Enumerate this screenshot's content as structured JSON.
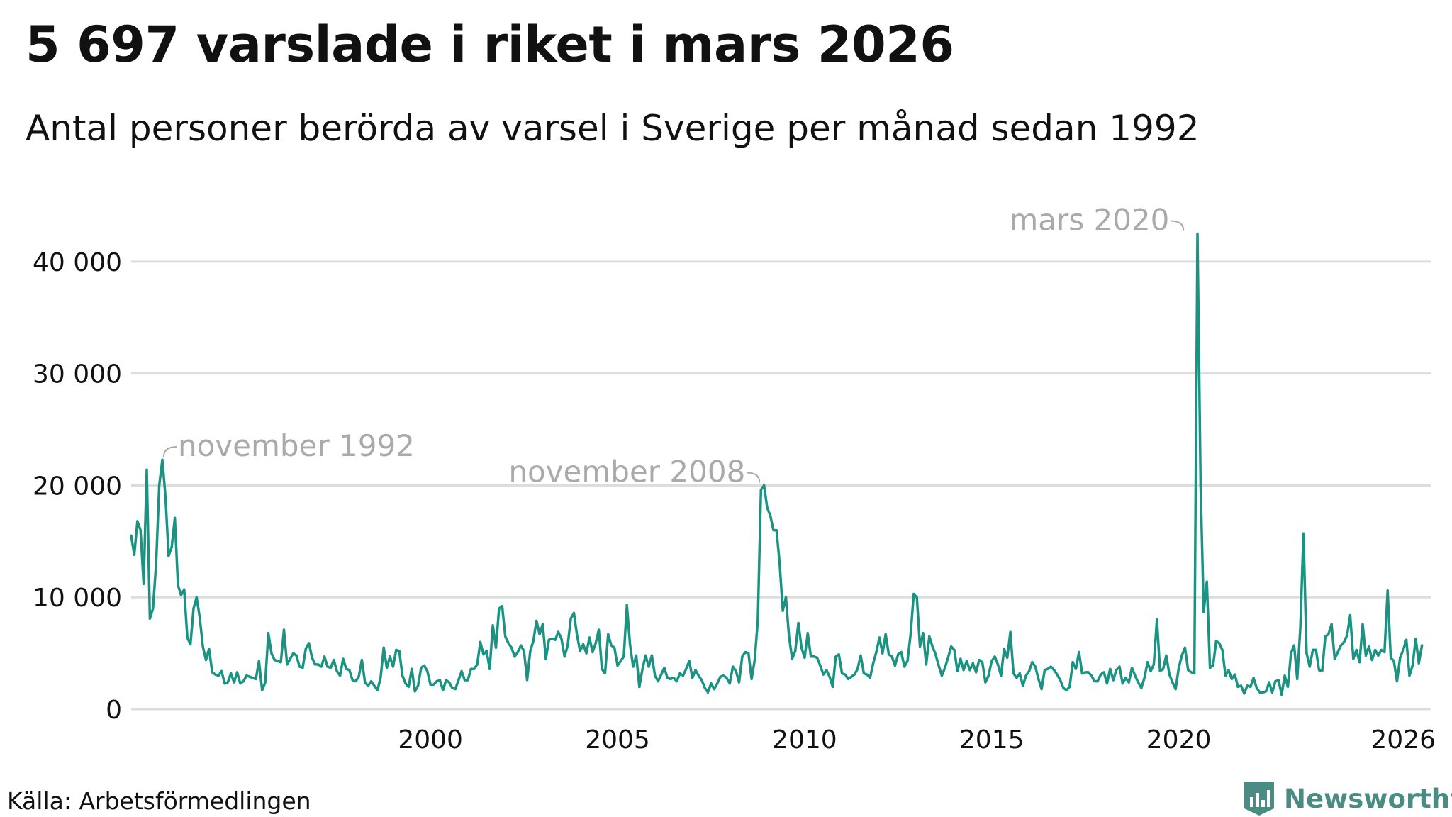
{
  "title": "5 697 varslade i riket i mars 2026",
  "subtitle": "Antal personer berörda av varsel i Sverige per månad sedan 1992",
  "source": "Källa: Arbetsförmedlingen",
  "brand": "Newsworthy",
  "colors": {
    "line": "#1a9383",
    "grid": "#dddddd",
    "annotation": "#aaaaaa",
    "text": "#111111",
    "brand": "#4a8c84"
  },
  "chart_data": {
    "type": "line",
    "title": "5 697 varslade i riket i mars 2026",
    "subtitle": "Antal personer berörda av varsel i Sverige per månad sedan 1992",
    "xlabel": "",
    "ylabel": "",
    "x_start": "1992-01",
    "x_end": "2026-03",
    "ylim": [
      0,
      45000
    ],
    "grid": true,
    "legend": "none",
    "y_ticks": [
      {
        "value": 0,
        "label": "0"
      },
      {
        "value": 10000,
        "label": "10 000"
      },
      {
        "value": 20000,
        "label": "20 000"
      },
      {
        "value": 30000,
        "label": "30 000"
      },
      {
        "value": 40000,
        "label": "40 000"
      }
    ],
    "x_ticks": [
      {
        "value": "2000-01",
        "label": "2000"
      },
      {
        "value": "2005-01",
        "label": "2005"
      },
      {
        "value": "2010-01",
        "label": "2010"
      },
      {
        "value": "2015-01",
        "label": "2015"
      },
      {
        "value": "2020-01",
        "label": "2020"
      },
      {
        "value": "2026-01",
        "label": "2026"
      }
    ],
    "annotations": [
      {
        "label": "november 1992",
        "x": "1992-11",
        "y": 22300,
        "side": "right"
      },
      {
        "label": "november 2008",
        "x": "2008-11",
        "y": 20000,
        "side": "left"
      },
      {
        "label": "mars 2020",
        "x": "2020-03",
        "y": 42500,
        "side": "left"
      }
    ],
    "series": [
      {
        "values": [
          15500,
          13800,
          16800,
          16000,
          11200,
          21400,
          8100,
          9000,
          13000,
          20000,
          22300,
          19000,
          13700,
          14500,
          17100,
          11100,
          10200,
          10700,
          6400,
          5800,
          9000,
          10000,
          8200,
          5600,
          4400,
          5400,
          3300,
          3100,
          3000,
          3400,
          2300,
          2400,
          3200,
          2400,
          3300,
          2300,
          2500,
          3000,
          2900,
          2800,
          2700,
          4300,
          1700,
          2400,
          6800,
          5000,
          4400,
          4300,
          4200,
          7100,
          4000,
          4500,
          5000,
          4800,
          3800,
          3700,
          5400,
          5900,
          4600,
          4000,
          4000,
          3800,
          4700,
          3800,
          3700,
          4400,
          3400,
          3000,
          4500,
          3600,
          3500,
          2600,
          2500,
          2900,
          4400,
          2400,
          2100,
          2500,
          2100,
          1700,
          2800,
          5500,
          3700,
          4700,
          3800,
          5300,
          5200,
          3000,
          2300,
          2000,
          3600,
          1600,
          2100,
          3700,
          3900,
          3400,
          2200,
          2200,
          2500,
          2600,
          1700,
          2600,
          2400,
          1900,
          1800,
          2600,
          3400,
          2600,
          2600,
          3600,
          3600,
          4000,
          6000,
          4900,
          5200,
          3600,
          7500,
          5500,
          9000,
          9200,
          6500,
          5900,
          5500,
          4700,
          5100,
          5700,
          5200,
          2600,
          5200,
          6100,
          7900,
          6700,
          7600,
          4500,
          6200,
          6300,
          6200,
          6900,
          6300,
          4700,
          5700,
          8100,
          8600,
          6600,
          5200,
          5800,
          5000,
          6400,
          5100,
          5900,
          7100,
          3600,
          3200,
          6700,
          5700,
          5500,
          3900,
          4300,
          4700,
          9300,
          5800,
          3800,
          4800,
          2000,
          3600,
          4800,
          3800,
          4800,
          3000,
          2500,
          3100,
          3700,
          2800,
          2700,
          2800,
          2500,
          3200,
          3000,
          3600,
          4300,
          2800,
          3500,
          3000,
          2600,
          1900,
          1500,
          2300,
          1800,
          2300,
          2900,
          3000,
          2800,
          2300,
          3800,
          3400,
          2400,
          4700,
          5100,
          5000,
          2700,
          4400,
          8000,
          19600,
          20000,
          18000,
          17300,
          16000,
          16000,
          13000,
          8800,
          10000,
          6500,
          4500,
          5200,
          7700,
          5500,
          4600,
          6800,
          4700,
          4700,
          4600,
          3900,
          3100,
          3500,
          2900,
          2000,
          4700,
          4900,
          3200,
          3100,
          2700,
          2900,
          3100,
          3600,
          4800,
          3200,
          3100,
          2800,
          4100,
          5100,
          6400,
          5000,
          6700,
          4900,
          4700,
          3900,
          4900,
          5100,
          3800,
          4300,
          6700,
          10300,
          10000,
          5600,
          6800,
          4000,
          6500,
          5600,
          4900,
          3900,
          3000,
          3700,
          4600,
          5600,
          5300,
          3400,
          4500,
          3500,
          4300,
          3500,
          4100,
          3300,
          4400,
          4200,
          2400,
          3000,
          4300,
          4700,
          4000,
          3000,
          5400,
          4600,
          6900,
          3200,
          2800,
          3200,
          2100,
          3000,
          3400,
          4200,
          3800,
          2700,
          1800,
          3500,
          3600,
          3800,
          3500,
          3100,
          2600,
          1900,
          1700,
          2000,
          4200,
          3600,
          5100,
          3200,
          3300,
          3300,
          3000,
          2500,
          2500,
          3100,
          3300,
          2300,
          3600,
          2600,
          3500,
          3800,
          2300,
          2800,
          2400,
          3700,
          3000,
          2400,
          1900,
          2800,
          4200,
          3400,
          4000,
          8000,
          3400,
          3600,
          4800,
          3100,
          2400,
          1800,
          3700,
          4800,
          5500,
          3500,
          3300,
          3200,
          42500,
          20000,
          8700,
          11400,
          3700,
          3900,
          6100,
          5900,
          5300,
          3000,
          3500,
          2700,
          3100,
          2000,
          2100,
          1400,
          2100,
          2000,
          2800,
          1900,
          1500,
          1500,
          1600,
          2400,
          1500,
          2500,
          2600,
          1300,
          3000,
          2000,
          5000,
          5700,
          2700,
          7300,
          15700,
          5000,
          3800,
          5300,
          5300,
          3500,
          3400,
          6500,
          6700,
          7600,
          4500,
          5100,
          5700,
          6000,
          6600,
          8400,
          4500,
          5300,
          4200,
          7600,
          4800,
          5600,
          4400,
          5300,
          4800,
          5300,
          5100,
          10600,
          4600,
          4300,
          2500,
          4600,
          5300,
          6200,
          3000,
          3900,
          6300,
          4100,
          5697
        ]
      }
    ]
  }
}
